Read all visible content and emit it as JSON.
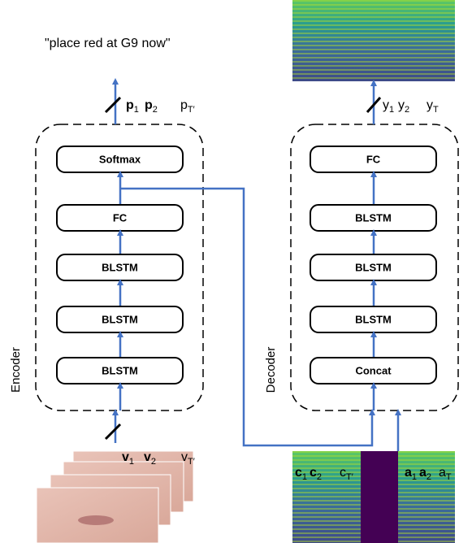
{
  "caption": "\"place red at G9 now\"",
  "encoder": {
    "label": "Encoder",
    "blocks": [
      "Softmax",
      "FC",
      "BLSTM",
      "BLSTM",
      "BLSTM"
    ]
  },
  "decoder": {
    "label": "Decoder",
    "blocks": [
      "FC",
      "BLSTM",
      "BLSTM",
      "BLSTM",
      "Concat"
    ]
  },
  "sequences": {
    "p": [
      {
        "base": "p",
        "sub": "1"
      },
      {
        "base": "p",
        "sub": "2"
      },
      {
        "base": "p",
        "sub": "T′"
      }
    ],
    "y": [
      {
        "base": "y",
        "sub": "1"
      },
      {
        "base": "y",
        "sub": "2"
      },
      {
        "base": "y",
        "sub": "T"
      }
    ],
    "v": [
      {
        "base": "v",
        "sub": "1"
      },
      {
        "base": "v",
        "sub": "2"
      },
      {
        "base": "v",
        "sub": "T′"
      }
    ],
    "c": [
      {
        "base": "c",
        "sub": "1"
      },
      {
        "base": "c",
        "sub": "2"
      },
      {
        "base": "c",
        "sub": "T′"
      }
    ],
    "a": [
      {
        "base": "a",
        "sub": "1"
      },
      {
        "base": "a",
        "sub": "2"
      },
      {
        "base": "a",
        "sub": "T"
      }
    ]
  }
}
